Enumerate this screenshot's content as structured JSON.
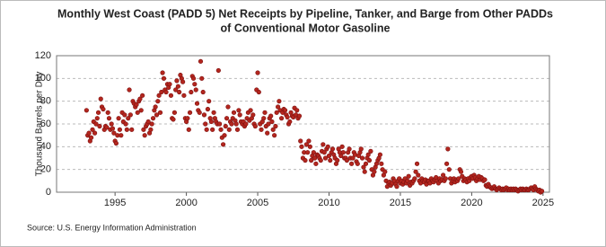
{
  "chart_data": {
    "type": "scatter",
    "title": [
      "Monthly West Coast (PADD 5) Net Receipts by Pipeline, Tanker, and Barge from Other PADDs",
      "of Conventional Motor Gasoline"
    ],
    "y_label": "Thousand Barrels per Day",
    "source": "Source: U.S. Energy Information Administration",
    "xlim": [
      1990.9,
      2025.45
    ],
    "xticks": [
      1995,
      2000,
      2005,
      2010,
      2015,
      2020,
      2025
    ],
    "ylim": [
      0,
      120
    ],
    "yticks": [
      0,
      20,
      40,
      60,
      80,
      100,
      120
    ],
    "grid": true,
    "x": [
      1993,
      1993.08,
      1993.17,
      1993.25,
      1993.33,
      1993.42,
      1993.5,
      1993.58,
      1993.67,
      1993.75,
      1993.83,
      1993.92,
      1994,
      1994.08,
      1994.17,
      1994.25,
      1994.33,
      1994.42,
      1994.5,
      1994.58,
      1994.67,
      1994.75,
      1994.83,
      1994.92,
      1995,
      1995.08,
      1995.17,
      1995.25,
      1995.33,
      1995.42,
      1995.5,
      1995.58,
      1995.67,
      1995.75,
      1995.83,
      1995.92,
      1996,
      1996.08,
      1996.17,
      1996.25,
      1996.33,
      1996.42,
      1996.5,
      1996.58,
      1996.67,
      1996.75,
      1996.83,
      1996.92,
      1997,
      1997.08,
      1997.17,
      1997.25,
      1997.33,
      1997.42,
      1997.5,
      1997.58,
      1997.67,
      1997.75,
      1997.83,
      1997.92,
      1998,
      1998.08,
      1998.17,
      1998.25,
      1998.33,
      1998.42,
      1998.5,
      1998.58,
      1998.67,
      1998.75,
      1998.83,
      1998.92,
      1999,
      1999.08,
      1999.17,
      1999.25,
      1999.33,
      1999.42,
      1999.5,
      1999.58,
      1999.67,
      1999.75,
      1999.83,
      1999.92,
      2000,
      2000.08,
      2000.17,
      2000.25,
      2000.33,
      2000.42,
      2000.5,
      2000.58,
      2000.67,
      2000.75,
      2000.83,
      2000.92,
      2001,
      2001.08,
      2001.17,
      2001.25,
      2001.33,
      2001.42,
      2001.5,
      2001.58,
      2001.67,
      2001.75,
      2001.83,
      2001.92,
      2002,
      2002.08,
      2002.17,
      2002.25,
      2002.33,
      2002.42,
      2002.5,
      2002.58,
      2002.67,
      2002.75,
      2002.83,
      2002.92,
      2003,
      2003.08,
      2003.17,
      2003.25,
      2003.33,
      2003.42,
      2003.5,
      2003.58,
      2003.67,
      2003.75,
      2003.83,
      2003.92,
      2004,
      2004.08,
      2004.17,
      2004.25,
      2004.33,
      2004.42,
      2004.5,
      2004.58,
      2004.67,
      2004.75,
      2004.83,
      2004.92,
      2005,
      2005.08,
      2005.17,
      2005.25,
      2005.33,
      2005.42,
      2005.5,
      2005.58,
      2005.67,
      2005.75,
      2005.83,
      2005.92,
      2006,
      2006.08,
      2006.17,
      2006.25,
      2006.33,
      2006.42,
      2006.5,
      2006.58,
      2006.67,
      2006.75,
      2006.83,
      2006.92,
      2007,
      2007.08,
      2007.17,
      2007.25,
      2007.33,
      2007.42,
      2007.5,
      2007.58,
      2007.67,
      2007.75,
      2007.83,
      2007.92,
      2008,
      2008.08,
      2008.17,
      2008.25,
      2008.33,
      2008.42,
      2008.5,
      2008.58,
      2008.67,
      2008.75,
      2008.83,
      2008.92,
      2009,
      2009.08,
      2009.17,
      2009.25,
      2009.33,
      2009.42,
      2009.5,
      2009.58,
      2009.67,
      2009.75,
      2009.83,
      2009.92,
      2010,
      2010.08,
      2010.17,
      2010.25,
      2010.33,
      2010.42,
      2010.5,
      2010.58,
      2010.67,
      2010.75,
      2010.83,
      2010.92,
      2011,
      2011.08,
      2011.17,
      2011.25,
      2011.33,
      2011.42,
      2011.5,
      2011.58,
      2011.67,
      2011.75,
      2011.83,
      2011.92,
      2012,
      2012.08,
      2012.17,
      2012.25,
      2012.33,
      2012.42,
      2012.5,
      2012.58,
      2012.67,
      2012.75,
      2012.83,
      2012.92,
      2013,
      2013.08,
      2013.17,
      2013.25,
      2013.33,
      2013.42,
      2013.5,
      2013.58,
      2013.67,
      2013.75,
      2013.83,
      2013.92,
      2014,
      2014.08,
      2014.17,
      2014.25,
      2014.33,
      2014.42,
      2014.5,
      2014.58,
      2014.67,
      2014.75,
      2014.83,
      2014.92,
      2015,
      2015.08,
      2015.17,
      2015.25,
      2015.33,
      2015.42,
      2015.5,
      2015.58,
      2015.67,
      2015.75,
      2015.83,
      2015.92,
      2016,
      2016.08,
      2016.17,
      2016.25,
      2016.33,
      2016.42,
      2016.5,
      2016.58,
      2016.67,
      2016.75,
      2016.83,
      2016.92,
      2017,
      2017.08,
      2017.17,
      2017.25,
      2017.33,
      2017.42,
      2017.5,
      2017.58,
      2017.67,
      2017.75,
      2017.83,
      2017.92,
      2018,
      2018.08,
      2018.17,
      2018.25,
      2018.33,
      2018.42,
      2018.5,
      2018.58,
      2018.67,
      2018.75,
      2018.83,
      2018.92,
      2019,
      2019.08,
      2019.17,
      2019.25,
      2019.33,
      2019.42,
      2019.5,
      2019.58,
      2019.67,
      2019.75,
      2019.83,
      2019.92,
      2020,
      2020.08,
      2020.17,
      2020.25,
      2020.33,
      2020.42,
      2020.5,
      2020.58,
      2020.67,
      2020.75,
      2020.83,
      2020.92,
      2021,
      2021.08,
      2021.17,
      2021.25,
      2021.33,
      2021.42,
      2021.5,
      2021.58,
      2021.67,
      2021.75,
      2021.83,
      2021.92,
      2022,
      2022.08,
      2022.17,
      2022.25,
      2022.33,
      2022.42,
      2022.5,
      2022.58,
      2022.67,
      2022.75,
      2022.83,
      2022.92,
      2023,
      2023.08,
      2023.17,
      2023.25,
      2023.33,
      2023.42,
      2023.5,
      2023.58,
      2023.67,
      2023.75,
      2023.83,
      2023.92,
      2024,
      2024.08,
      2024.17,
      2024.25,
      2024.33,
      2024.42,
      2024.5,
      2024.58,
      2024.67,
      2024.75,
      2024.83,
      2024.92
    ],
    "series": [
      {
        "color": "#b3261e",
        "values": [
          72,
          50,
          52,
          45,
          48,
          55,
          62,
          52,
          60,
          65,
          70,
          58,
          82,
          75,
          73,
          55,
          58,
          57,
          70,
          65,
          55,
          60,
          56,
          52,
          45,
          43,
          50,
          65,
          55,
          50,
          70,
          62,
          68,
          60,
          55,
          65,
          90,
          68,
          55,
          80,
          78,
          75,
          77,
          70,
          80,
          82,
          72,
          85,
          55,
          50,
          58,
          60,
          62,
          52,
          55,
          60,
          65,
          72,
          75,
          68,
          80,
          85,
          70,
          88,
          105,
          100,
          90,
          88,
          95,
          92,
          95,
          85,
          65,
          64,
          70,
          90,
          98,
          93,
          88,
          103,
          100,
          97,
          85,
          65,
          62,
          65,
          55,
          70,
          88,
          102,
          100,
          95,
          90,
          78,
          72,
          70,
          115,
          100,
          88,
          68,
          60,
          55,
          73,
          80,
          65,
          62,
          55,
          70,
          65,
          62,
          60,
          107,
          60,
          55,
          48,
          42,
          50,
          58,
          65,
          75,
          55,
          62,
          60,
          65,
          70,
          63,
          60,
          55,
          72,
          68,
          62,
          60,
          62,
          58,
          60,
          65,
          70,
          63,
          72,
          65,
          68,
          60,
          58,
          90,
          105,
          88,
          60,
          55,
          62,
          65,
          70,
          58,
          52,
          60,
          65,
          67,
          62,
          55,
          50,
          58,
          70,
          75,
          80,
          72,
          65,
          70,
          73,
          72,
          68,
          66,
          60,
          62,
          70,
          67,
          66,
          74,
          68,
          72,
          65,
          67,
          45,
          40,
          30,
          35,
          28,
          42,
          35,
          45,
          40,
          28,
          32,
          35,
          30,
          25,
          33,
          32,
          30,
          28,
          36,
          42,
          35,
          30,
          38,
          40,
          32,
          28,
          35,
          38,
          33,
          30,
          25,
          28,
          38,
          35,
          32,
          40,
          35,
          30,
          30,
          28,
          35,
          38,
          30,
          25,
          30,
          35,
          33,
          27,
          25,
          32,
          35,
          38,
          30,
          22,
          18,
          25,
          30,
          33,
          28,
          36,
          20,
          15,
          18,
          22,
          25,
          28,
          30,
          33,
          25,
          20,
          15,
          18,
          10,
          5,
          8,
          9,
          6,
          8,
          12,
          10,
          7,
          5,
          10,
          12,
          8,
          10,
          7,
          9,
          12,
          8,
          10,
          14,
          6,
          9,
          8,
          10,
          12,
          18,
          25,
          15,
          10,
          8,
          12,
          10,
          9,
          11,
          7,
          10,
          10,
          8,
          12,
          10,
          9,
          11,
          13,
          10,
          8,
          12,
          10,
          11,
          15,
          10,
          12,
          25,
          38,
          20,
          12,
          8,
          10,
          12,
          9,
          11,
          10,
          12,
          20,
          18,
          14,
          10,
          12,
          11,
          9,
          12,
          10,
          13,
          14,
          12,
          15,
          13,
          10,
          12,
          14,
          11,
          13,
          12,
          10,
          11,
          6,
          5,
          7,
          5,
          4,
          3,
          4,
          5,
          3,
          2,
          3,
          4,
          3,
          2,
          3,
          2,
          3,
          4,
          2,
          3,
          2,
          3,
          2,
          3,
          2,
          3,
          2,
          1,
          2,
          3,
          2,
          3,
          2,
          2,
          3,
          2,
          2,
          3,
          4,
          3,
          2,
          5,
          3,
          2,
          1,
          2,
          0,
          1
        ]
      }
    ]
  }
}
